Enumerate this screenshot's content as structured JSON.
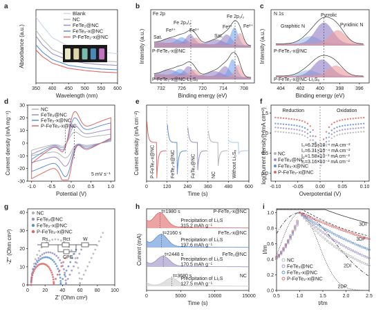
{
  "colors": {
    "nc": "#b3b3b3",
    "fete2": "#9b8ec4",
    "fete2x": "#5b8fd6",
    "pfete2x": "#e06666",
    "sat": "#8e7cc3",
    "fe2p": "#6d9eeb",
    "pink": "#ea9999"
  },
  "panels": [
    "a",
    "b",
    "c",
    "d",
    "e",
    "f",
    "g",
    "h",
    "i"
  ],
  "series": {
    "blank": "Blank",
    "nc": "NC",
    "fete2": "FeTe",
    "fete2x": "FeTe",
    "pfete2x": "P-FeTe"
  },
  "chart_data": [
    {
      "panel": "a",
      "type": "line",
      "xlabel": "Wavelength (nm)",
      "ylabel": "Absorbance (a.u.)",
      "xticks": [
        "350",
        "400",
        "450",
        "500",
        "550",
        "600"
      ],
      "xlim": [
        350,
        600
      ],
      "legend": [
        "Blank",
        "NC",
        "FeTe₂@NC",
        "FeTe₂-x@NC",
        "P-FeTe₂-x@NC"
      ],
      "series": [
        {
          "name": "Blank",
          "x": [
            350,
            370,
            400,
            450,
            500,
            550,
            600
          ],
          "y": [
            1.0,
            0.88,
            0.72,
            0.6,
            0.55,
            0.52,
            0.5
          ]
        },
        {
          "name": "NC",
          "x": [
            350,
            370,
            400,
            450,
            500,
            550,
            600
          ],
          "y": [
            0.82,
            0.7,
            0.56,
            0.46,
            0.42,
            0.4,
            0.39
          ]
        },
        {
          "name": "FeTe₂@NC",
          "x": [
            350,
            370,
            400,
            450,
            500,
            550,
            600
          ],
          "y": [
            0.74,
            0.62,
            0.5,
            0.41,
            0.37,
            0.35,
            0.34
          ]
        },
        {
          "name": "FeTe₂-x@NC",
          "x": [
            350,
            370,
            400,
            450,
            500,
            550,
            600
          ],
          "y": [
            0.62,
            0.52,
            0.42,
            0.34,
            0.31,
            0.29,
            0.28
          ]
        },
        {
          "name": "P-FeTe₂-x@NC",
          "x": [
            350,
            370,
            400,
            450,
            500,
            550,
            600
          ],
          "y": [
            0.55,
            0.46,
            0.37,
            0.3,
            0.27,
            0.25,
            0.24
          ]
        }
      ]
    },
    {
      "panel": "b",
      "type": "line",
      "title": "Fe 2p",
      "xlabel": "Binding energy (eV)",
      "ylabel": "Intensity (a.u.)",
      "xticks": [
        "732",
        "726",
        "720",
        "714",
        "708"
      ],
      "xlim": [
        735,
        705
      ],
      "peaks": [
        "Sat.",
        "Fe³⁺",
        "Fe 2p₁/₂",
        "Fe²⁺",
        "Fe 2p₃/₂",
        "Fe³⁺",
        "Sat.",
        "Fe²⁺"
      ],
      "traces": [
        "P-FeTe₂-x@NC",
        "P-FeTe₂-x@NC-Li₂S₆"
      ],
      "shifts": [
        {
          "from": 723.4,
          "to": 724.0
        },
        {
          "from": 710.6,
          "to": 711.2
        }
      ]
    },
    {
      "panel": "c",
      "type": "line",
      "title": "N 1s",
      "xlabel": "Binding energy (eV)",
      "ylabel": "Intensity (a.u.)",
      "xticks": [
        "404",
        "402",
        "400",
        "398",
        "396"
      ],
      "xlim": [
        405,
        395
      ],
      "peaks": [
        "Graphitic N",
        "Pyrrolic",
        "Pyridinic N"
      ],
      "traces": [
        "P-FeTe₂-x@NC",
        "P-FeTe₂-x@NC-Li₂S₆"
      ]
    },
    {
      "panel": "d",
      "type": "line",
      "xlabel": "Potential (V)",
      "ylabel": "Current density (mA mg⁻¹)",
      "xticks": [
        "-1.0",
        "-0.5",
        "0.0",
        "0.5",
        "1.0"
      ],
      "yticks": [
        "-30",
        "-20",
        "-10",
        "0",
        "10",
        "20",
        "30"
      ],
      "xlim": [
        -1.1,
        1.1
      ],
      "ylim": [
        -30,
        30
      ],
      "annotation": "5 mV s⁻¹",
      "legend": [
        "NC",
        "FeTe₂@NC",
        "FeTe₂-x@NC",
        "P-FeTe₂-x@NC"
      ]
    },
    {
      "panel": "e",
      "type": "line",
      "xlabel": "Time (s)",
      "ylabel": "Current density (mA cm⁻²)",
      "xticks": [
        "0",
        "120",
        "240",
        "360",
        "480",
        "600"
      ],
      "xlim": [
        0,
        600
      ],
      "segments": [
        "P-FeTe₂-x@NC",
        "FeTe₂-x@NC",
        "FeTe₂@NC",
        "NC",
        "Without Li₂S₆"
      ]
    },
    {
      "panel": "f",
      "type": "scatter",
      "xlabel": "Overpotential (V)",
      "ylabel": "log(|current density|) (mA cm⁻²)",
      "xticks": [
        "-0.10",
        "-0.05",
        "0.00",
        "0.05",
        "0.10"
      ],
      "yticks": [
        "0.0",
        "0.5",
        "1.0",
        "1.5"
      ],
      "xlim": [
        -0.11,
        0.11
      ],
      "ylim": [
        -0.2,
        1.7
      ],
      "regions": [
        "Reduction",
        "Oxidation"
      ],
      "legend": [
        "NC",
        "FeTe₂@NC",
        "FeTe₂-x@NC",
        "P-FeTe₂-x@NC"
      ],
      "exchange_currents": [
        "I₀=6.25×10⁻⁴ mA cm⁻²",
        "I₀=6.31×10⁻⁴ mA cm⁻²",
        "I₀=1.58×10⁻³ mA cm⁻²",
        "I₀=3.16×10⁻³ mA cm⁻²"
      ]
    },
    {
      "panel": "g",
      "type": "scatter",
      "xlabel": "Z′ (Ohm cm²)",
      "ylabel": "-Z″ (Ohm cm²)",
      "xticks": [
        "0",
        "20",
        "40",
        "60",
        "80",
        "100"
      ],
      "yticks": [
        "0",
        "10",
        "20",
        "30",
        "40"
      ],
      "xlim": [
        0,
        100
      ],
      "ylim": [
        0,
        42
      ],
      "legend": [
        "NC",
        "FeTe₂@NC",
        "FeTe₂-x@NC",
        "P-FeTe₂-x@NC"
      ],
      "circuit": [
        "Rs",
        "Rct",
        "CPE",
        "W"
      ]
    },
    {
      "panel": "h",
      "type": "area",
      "xlabel": "Time (s)",
      "ylabel": "Current (mA)",
      "xticks": [
        "0",
        "5000",
        "10000",
        "15000"
      ],
      "xlim": [
        0,
        15000
      ],
      "rows": [
        {
          "name": "P-FeTe₂-x@NC",
          "t": "t=1980 s",
          "desc": "Precipitation of Li₂S",
          "cap": "315.2 mAh g⁻¹"
        },
        {
          "name": "FeTe₂-x@NC",
          "t": "t=2160 s",
          "desc": "Precipitation of Li₂S",
          "cap": "197.6 mAh g⁻¹"
        },
        {
          "name": "FeTe₂@NC",
          "t": "t=2448 s",
          "desc": "Precipitation of Li₂S",
          "cap": "170.5 mAh g⁻¹"
        },
        {
          "name": "NC",
          "t": "t=3680 s",
          "desc": "Precipitation of Li₂S",
          "cap": "127.5 mAh g⁻¹"
        }
      ]
    },
    {
      "panel": "i",
      "type": "scatter",
      "xlabel": "t/tm",
      "ylabel": "I/Im",
      "xticks": [
        "0.5",
        "1.0",
        "1.5",
        "2.0",
        "2.5"
      ],
      "yticks": [
        "0.0",
        "0.2",
        "0.4",
        "0.6",
        "0.8",
        "1.0"
      ],
      "xlim": [
        0.5,
        2.5
      ],
      "ylim": [
        0,
        1.05
      ],
      "models": [
        "3DI",
        "3DP",
        "2DI",
        "2DP"
      ],
      "legend": [
        "NC",
        "FeTe₂@NC",
        "FeTe₂-x@NC",
        "P-FeTe₂-x@NC"
      ]
    }
  ]
}
